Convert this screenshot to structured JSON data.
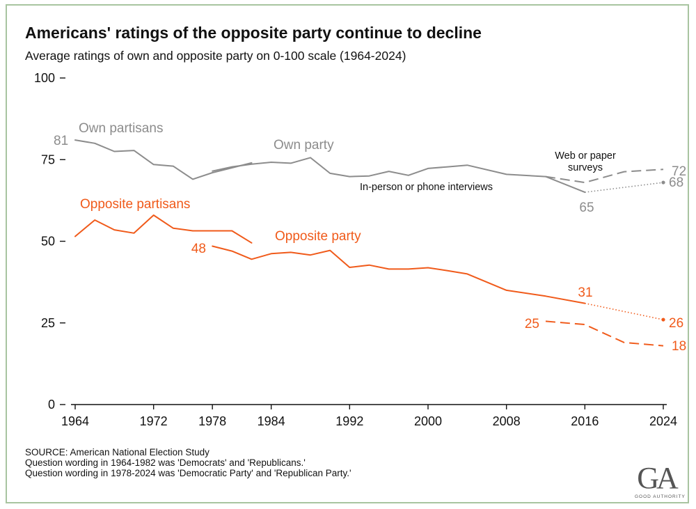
{
  "title": "Americans' ratings of the opposite party continue to decline",
  "subtitle": "Average ratings of own and opposite party on 0-100 scale (1964-2024)",
  "colors": {
    "own": "#8c8c8c",
    "opposite": "#f05a1a",
    "frame": "#a8c4a0",
    "axis": "#111111"
  },
  "chart_data": {
    "type": "line",
    "x_ticks": [
      "1964",
      "1972",
      "1978",
      "1984",
      "1992",
      "2000",
      "2008",
      "2016",
      "2024"
    ],
    "y_ticks": [
      "0",
      "25",
      "50",
      "75",
      "100"
    ],
    "ylim": [
      0,
      100
    ],
    "xlim": [
      1964,
      2024
    ],
    "series": [
      {
        "name": "Own partisans",
        "color": "own",
        "style": "solid",
        "points": [
          [
            1964,
            81
          ],
          [
            1966,
            80
          ],
          [
            1968,
            77.5
          ],
          [
            1970,
            77.8
          ],
          [
            1972,
            73.5
          ],
          [
            1974,
            73
          ],
          [
            1976,
            69
          ],
          [
            1978,
            71
          ],
          [
            1980,
            72.5
          ],
          [
            1982,
            74
          ]
        ]
      },
      {
        "name": "Own party",
        "color": "own",
        "style": "solid",
        "points": [
          [
            1978,
            71.5
          ],
          [
            1980,
            72.8
          ],
          [
            1982,
            73.6
          ],
          [
            1984,
            74.2
          ],
          [
            1986,
            73.9
          ],
          [
            1988,
            75.6
          ],
          [
            1990,
            70.8
          ],
          [
            1992,
            69.8
          ],
          [
            1994,
            70
          ],
          [
            1996,
            71.4
          ],
          [
            1998,
            70.2
          ],
          [
            2000,
            72.3
          ],
          [
            2002,
            72.8
          ],
          [
            2004,
            73.3
          ],
          [
            2008,
            70.5
          ],
          [
            2012,
            69.8
          ],
          [
            2016,
            65
          ]
        ]
      },
      {
        "name": "Own party (web or paper surveys)",
        "color": "own",
        "style": "dashed",
        "points": [
          [
            2012,
            69.8
          ],
          [
            2016,
            68
          ],
          [
            2020,
            71.3
          ],
          [
            2024,
            72
          ]
        ]
      },
      {
        "name": "Own party (in-person or phone interviews)",
        "color": "own",
        "style": "dotted",
        "points": [
          [
            2016,
            65
          ],
          [
            2024,
            68
          ]
        ]
      },
      {
        "name": "Opposite partisans",
        "color": "opposite",
        "style": "solid",
        "points": [
          [
            1964,
            51.5
          ],
          [
            1966,
            56.5
          ],
          [
            1968,
            53.5
          ],
          [
            1970,
            52.5
          ],
          [
            1972,
            58
          ],
          [
            1974,
            54
          ],
          [
            1976,
            53.2
          ],
          [
            1978,
            53.2
          ],
          [
            1980,
            53.2
          ],
          [
            1982,
            49.5
          ]
        ]
      },
      {
        "name": "Opposite party",
        "color": "opposite",
        "style": "solid",
        "points": [
          [
            1978,
            48.5
          ],
          [
            1980,
            47
          ],
          [
            1982,
            44.5
          ],
          [
            1984,
            46.2
          ],
          [
            1986,
            46.6
          ],
          [
            1988,
            45.8
          ],
          [
            1990,
            47.2
          ],
          [
            1992,
            42
          ],
          [
            1994,
            42.7
          ],
          [
            1996,
            41.5
          ],
          [
            1998,
            41.5
          ],
          [
            2000,
            41.9
          ],
          [
            2002,
            41
          ],
          [
            2004,
            40
          ],
          [
            2008,
            35
          ],
          [
            2012,
            33.2
          ],
          [
            2016,
            31
          ]
        ]
      },
      {
        "name": "Opposite party (web or paper surveys)",
        "color": "opposite",
        "style": "dashed",
        "points": [
          [
            2012,
            25.5
          ],
          [
            2016,
            24.5
          ],
          [
            2020,
            19
          ],
          [
            2024,
            18
          ]
        ]
      },
      {
        "name": "Opposite party (in-person or phone interviews)",
        "color": "opposite",
        "style": "dotted",
        "points": [
          [
            2016,
            31
          ],
          [
            2024,
            26
          ]
        ]
      }
    ],
    "markers": [
      {
        "color": "own",
        "x": 2024,
        "y": 68
      },
      {
        "color": "opposite",
        "x": 2024,
        "y": 26
      }
    ],
    "annotations": [
      {
        "id": "label-own-partisans",
        "text": "Own partisans",
        "color": "own",
        "size": 19
      },
      {
        "id": "label-own-party",
        "text": "Own party",
        "color": "own",
        "size": 19
      },
      {
        "id": "label-opposite-partisans",
        "text": "Opposite partisans",
        "color": "opposite",
        "size": 19
      },
      {
        "id": "label-opposite-party",
        "text": "Opposite party",
        "color": "opposite",
        "size": 19
      },
      {
        "id": "label-web-paper-1",
        "text": "Web or paper",
        "color": "axis",
        "size": 14.5
      },
      {
        "id": "label-web-paper-2",
        "text": "surveys",
        "color": "axis",
        "size": 14.5
      },
      {
        "id": "label-in-person",
        "text": "In-person or phone interviews",
        "color": "axis",
        "size": 14.5
      },
      {
        "id": "value-own-start",
        "text": "81",
        "color": "own",
        "size": 19
      },
      {
        "id": "value-own-2016",
        "text": "65",
        "color": "own",
        "size": 19
      },
      {
        "id": "value-own-web",
        "text": "72",
        "color": "own",
        "size": 19
      },
      {
        "id": "value-own-phone",
        "text": "68",
        "color": "own",
        "size": 19
      },
      {
        "id": "value-opp-1978",
        "text": "48",
        "color": "opposite",
        "size": 19
      },
      {
        "id": "value-opp-2016",
        "text": "31",
        "color": "opposite",
        "size": 19
      },
      {
        "id": "value-opp-web-start",
        "text": "25",
        "color": "opposite",
        "size": 19
      },
      {
        "id": "value-opp-phone",
        "text": "26",
        "color": "opposite",
        "size": 19
      },
      {
        "id": "value-opp-web-end",
        "text": "18",
        "color": "opposite",
        "size": 19
      }
    ]
  },
  "notes": {
    "source": "SOURCE: American National Election Study",
    "line1": "Question wording in 1964-1982 was 'Democrats' and 'Republicans.'",
    "line2": "Question wording in 1978-2024 was 'Democratic Party' and 'Republican Party.'"
  },
  "logo": {
    "mark": "GA",
    "text": "GOOD AUTHORITY"
  }
}
